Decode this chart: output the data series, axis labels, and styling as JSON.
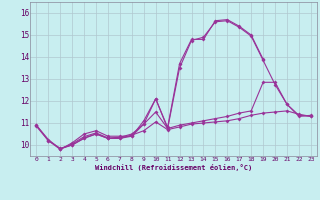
{
  "background_color": "#c8eef0",
  "grid_color": "#b0c8d0",
  "line_color": "#993399",
  "xlabel": "Windchill (Refroidissement éolien,°C)",
  "xlim": [
    -0.5,
    23.5
  ],
  "ylim": [
    9.5,
    16.5
  ],
  "yticks": [
    10,
    11,
    12,
    13,
    14,
    15,
    16
  ],
  "xticks": [
    0,
    1,
    2,
    3,
    4,
    5,
    6,
    7,
    8,
    9,
    10,
    11,
    12,
    13,
    14,
    15,
    16,
    17,
    18,
    19,
    20,
    21,
    22,
    23
  ],
  "series": [
    {
      "x": [
        0,
        1,
        2,
        3,
        4,
        5,
        6,
        7,
        8,
        9,
        10,
        11,
        12,
        13,
        14,
        15,
        16,
        17,
        18,
        19
      ],
      "y": [
        10.9,
        10.2,
        9.8,
        10.1,
        10.5,
        10.65,
        10.4,
        10.4,
        10.4,
        11.1,
        12.1,
        10.8,
        13.7,
        14.8,
        14.8,
        15.65,
        15.7,
        15.4,
        15.0,
        13.9
      ]
    },
    {
      "x": [
        0,
        1,
        2,
        3,
        4,
        5,
        6,
        7,
        8,
        9,
        10,
        11,
        12,
        13,
        14,
        15,
        16,
        17,
        18,
        19,
        20,
        21,
        22,
        23
      ],
      "y": [
        10.9,
        10.25,
        9.82,
        10.05,
        10.38,
        10.55,
        10.32,
        10.35,
        10.5,
        10.95,
        11.5,
        10.75,
        10.9,
        11.0,
        11.1,
        11.2,
        11.3,
        11.45,
        11.55,
        12.85,
        12.85,
        11.85,
        11.35,
        11.3
      ]
    },
    {
      "x": [
        0,
        1,
        2,
        3,
        4,
        5,
        6,
        7,
        8,
        9,
        10,
        11,
        12,
        13,
        14,
        15,
        16,
        17,
        18,
        19,
        20,
        21,
        22,
        23
      ],
      "y": [
        10.85,
        10.2,
        9.85,
        10.0,
        10.32,
        10.5,
        10.3,
        10.3,
        10.45,
        10.65,
        11.05,
        10.7,
        10.82,
        10.95,
        11.0,
        11.05,
        11.1,
        11.2,
        11.35,
        11.45,
        11.5,
        11.55,
        11.4,
        11.3
      ]
    },
    {
      "x": [
        2,
        3,
        4,
        5,
        6,
        7,
        8,
        9,
        10,
        11,
        12,
        13,
        14,
        15,
        16,
        17,
        18,
        19,
        20,
        21,
        22,
        23
      ],
      "y": [
        9.82,
        10.0,
        10.3,
        10.5,
        10.3,
        10.3,
        10.4,
        10.95,
        12.1,
        10.75,
        13.5,
        14.75,
        14.9,
        15.6,
        15.65,
        15.35,
        14.95,
        13.85,
        12.75,
        11.85,
        11.3,
        11.35
      ]
    }
  ]
}
